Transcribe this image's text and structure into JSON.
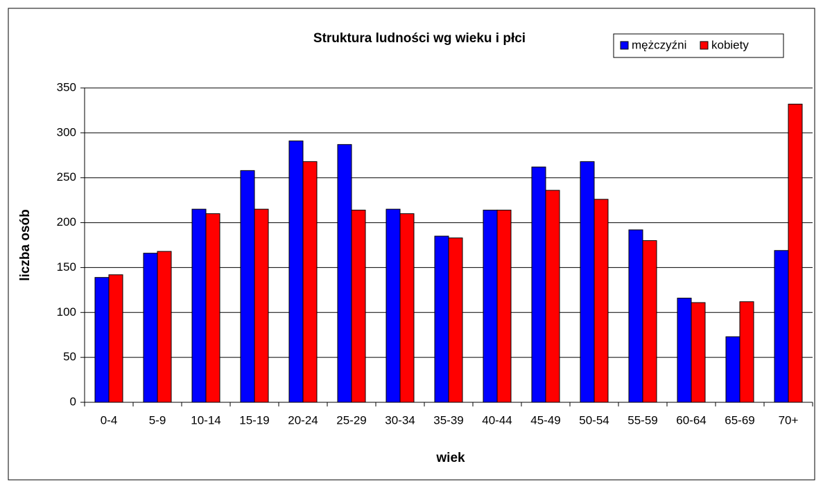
{
  "chart_data": {
    "type": "bar",
    "title": "Struktura ludności wg wieku i płci",
    "x_label": "wiek",
    "y_label": "liczba osób",
    "categories": [
      "0-4",
      "5-9",
      "10-14",
      "15-19",
      "20-24",
      "25-29",
      "30-34",
      "35-39",
      "40-44",
      "45-49",
      "50-54",
      "55-59",
      "60-64",
      "65-69",
      "70+"
    ],
    "series": [
      {
        "name": "mężczyźni",
        "color": "#0000ff",
        "values": [
          139,
          166,
          215,
          258,
          291,
          287,
          215,
          185,
          214,
          262,
          268,
          192,
          116,
          73,
          169
        ]
      },
      {
        "name": "kobiety",
        "color": "#ff0000",
        "values": [
          142,
          168,
          210,
          215,
          268,
          214,
          210,
          183,
          214,
          236,
          226,
          180,
          111,
          112,
          332
        ]
      }
    ],
    "ylim": [
      0,
      350
    ],
    "yticks": [
      0,
      50,
      100,
      150,
      200,
      250,
      300,
      350
    ],
    "grid": true,
    "legend": "top-right"
  }
}
